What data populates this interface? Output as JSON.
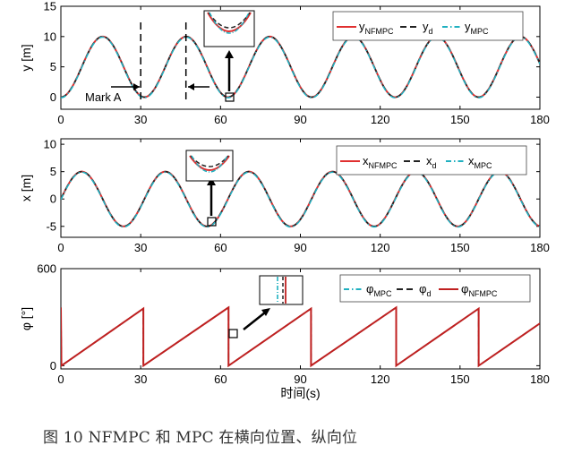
{
  "chart_data": [
    {
      "type": "line",
      "ylabel": "y [m]",
      "xlim": [
        0,
        180
      ],
      "ylim": [
        -2,
        15
      ],
      "xticks": [
        0,
        30,
        60,
        90,
        120,
        150,
        180
      ],
      "yticks": [
        0,
        5,
        10,
        15
      ],
      "reference": {
        "kind": "sine",
        "offset": 5,
        "amplitude": 5,
        "period": 31.4,
        "phase_start": "minimum"
      },
      "series": [
        {
          "name": "y_NFMPC",
          "main": "y",
          "sub": "NFMPC",
          "color": "#e03030",
          "dash": "solid"
        },
        {
          "name": "y_d",
          "main": "y",
          "sub": "d",
          "color": "#222222",
          "dash": "dash"
        },
        {
          "name": "y_MPC",
          "main": "y",
          "sub": "MPC",
          "color": "#20b0c0",
          "dash": "dashdot"
        }
      ],
      "markers_x": [
        30,
        47
      ],
      "annotation": "Mark A",
      "legend": "top-right"
    },
    {
      "type": "line",
      "ylabel": "x [m]",
      "xlim": [
        0,
        180
      ],
      "ylim": [
        -7,
        11
      ],
      "xticks": [
        0,
        30,
        60,
        90,
        120,
        150,
        180
      ],
      "yticks": [
        -5,
        0,
        5,
        10
      ],
      "reference": {
        "kind": "sine",
        "offset": 0,
        "amplitude": 5,
        "period": 31.4,
        "phase_start": "zero"
      },
      "series": [
        {
          "name": "x_NFMPC",
          "main": "x",
          "sub": "NFMPC",
          "color": "#e03030",
          "dash": "solid"
        },
        {
          "name": "x_d",
          "main": "x",
          "sub": "d",
          "color": "#222222",
          "dash": "dash"
        },
        {
          "name": "x_MPC",
          "main": "x",
          "sub": "MPC",
          "color": "#20b0c0",
          "dash": "dashdot"
        }
      ],
      "legend": "top-right"
    },
    {
      "type": "line",
      "ylabel": "φ [°]",
      "xlabel": "时间(s)",
      "xlim": [
        0,
        180
      ],
      "ylim": [
        -20,
        600
      ],
      "xticks": [
        0,
        30,
        60,
        90,
        120,
        150,
        180
      ],
      "yticks": [
        0,
        600
      ],
      "reference": {
        "kind": "sawtooth",
        "start_value": 360,
        "drop_times": [
          0,
          31,
          63,
          94,
          126,
          157
        ],
        "rise_per_period": 360,
        "period": 31.4
      },
      "series": [
        {
          "name": "φ_MPC",
          "main": "φ",
          "sub": "MPC",
          "color": "#20b0c0",
          "dash": "dashdot"
        },
        {
          "name": "φ_d",
          "main": "φ",
          "sub": "d",
          "color": "#222222",
          "dash": "dash"
        },
        {
          "name": "φ_NFMPC",
          "main": "φ",
          "sub": "NFMPC",
          "color": "#c02020",
          "dash": "solid"
        }
      ],
      "legend": "top-right"
    }
  ],
  "caption": "图 10 NFMPC 和 MPC 在横向位置、纵向位"
}
